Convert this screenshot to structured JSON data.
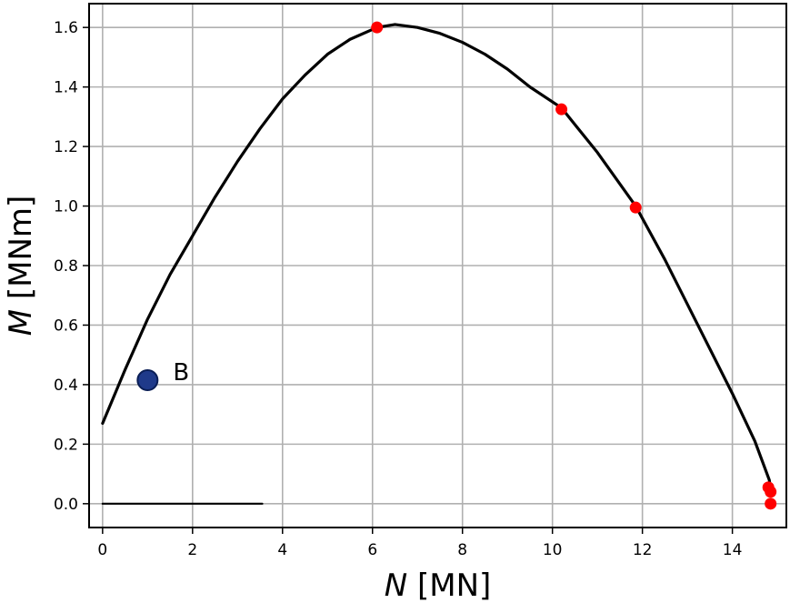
{
  "chart_data": {
    "type": "line",
    "title": "",
    "xlabel": {
      "symbol": "N",
      "unit": " [MN]"
    },
    "ylabel": {
      "symbol": "M",
      "unit": " [MNm]"
    },
    "xlim": [
      -0.3,
      15.2
    ],
    "ylim": [
      -0.08,
      1.68
    ],
    "grid": true,
    "xticks": [
      0,
      2,
      4,
      6,
      8,
      10,
      12,
      14
    ],
    "xtick_labels": [
      "0",
      "2",
      "4",
      "6",
      "8",
      "10",
      "12",
      "14"
    ],
    "yticks": [
      0.0,
      0.2,
      0.4,
      0.6,
      0.8,
      1.0,
      1.2,
      1.4,
      1.6
    ],
    "ytick_labels": [
      "0.0",
      "0.2",
      "0.4",
      "0.6",
      "0.8",
      "1.0",
      "1.2",
      "1.4",
      "1.6"
    ],
    "series": [
      {
        "style": "line",
        "color": "#000000",
        "x": [
          0.0,
          0.5,
          1.0,
          1.5,
          2.0,
          2.5,
          3.0,
          3.5,
          4.0,
          4.5,
          5.0,
          5.5,
          6.1,
          6.5,
          7.0,
          7.5,
          8.0,
          8.5,
          9.0,
          9.5,
          10.2,
          11.0,
          11.85,
          12.5,
          13.0,
          13.5,
          14.0,
          14.5,
          14.82,
          14.85
        ],
        "y": [
          0.27,
          0.45,
          0.62,
          0.77,
          0.9,
          1.03,
          1.15,
          1.26,
          1.36,
          1.44,
          1.51,
          1.56,
          1.6,
          1.61,
          1.6,
          1.58,
          1.55,
          1.51,
          1.46,
          1.4,
          1.33,
          1.18,
          1.0,
          0.82,
          0.67,
          0.52,
          0.37,
          0.21,
          0.08,
          0.05
        ]
      },
      {
        "style": "line",
        "color": "#000000",
        "x": [
          0.0,
          3.55
        ],
        "y": [
          0.0,
          0.0
        ]
      },
      {
        "style": "scatter",
        "color": "#ff0000",
        "x": [
          6.1,
          10.2,
          11.85,
          14.8,
          14.85,
          14.85
        ],
        "y": [
          1.6,
          1.325,
          0.995,
          0.055,
          0.04,
          0.0
        ]
      },
      {
        "style": "scatter",
        "color": "#1f3a8a",
        "x": [
          1.0
        ],
        "y": [
          0.415
        ]
      }
    ],
    "annotations": [
      {
        "text": "B",
        "x": 1.0,
        "y": 0.415
      }
    ]
  }
}
